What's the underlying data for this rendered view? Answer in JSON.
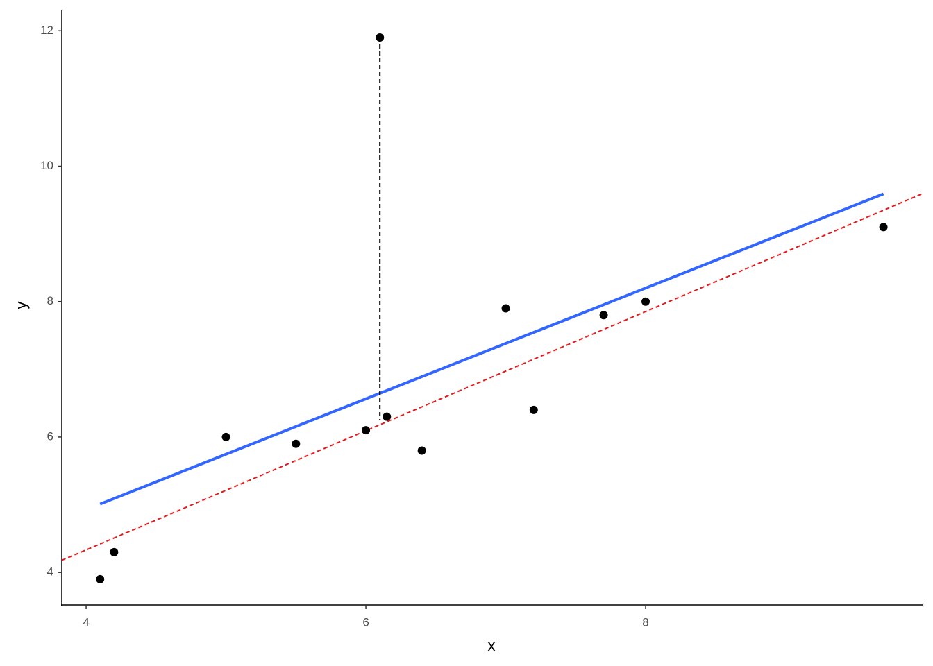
{
  "chart_data": {
    "type": "scatter",
    "x_label": "x",
    "y_label": "y",
    "x": [
      4.1,
      4.2,
      5.0,
      5.5,
      6.0,
      6.1,
      6.15,
      6.4,
      7.0,
      7.2,
      7.7,
      8.0,
      9.7
    ],
    "values": [
      3.9,
      4.3,
      6.0,
      5.9,
      6.1,
      11.9,
      6.3,
      5.8,
      7.9,
      6.4,
      7.8,
      8.0,
      9.1
    ],
    "color": "#000000",
    "fit_line": {
      "color": "#3366ff",
      "x": [
        4.1,
        9.7
      ],
      "values": [
        5.01,
        9.59
      ]
    },
    "abline": {
      "color": "#e41a1c",
      "intercept": 0.813,
      "slope": 0.88
    },
    "segment": {
      "color": "#000000",
      "x": 6.1,
      "y": [
        11.9,
        6.25
      ]
    },
    "xlim": [
      3.826,
      9.985
    ],
    "ylim": [
      3.52,
      12.3
    ],
    "xticks": [
      4,
      6,
      8
    ],
    "yticks": [
      4,
      6,
      8,
      10,
      12
    ],
    "grid": false
  }
}
